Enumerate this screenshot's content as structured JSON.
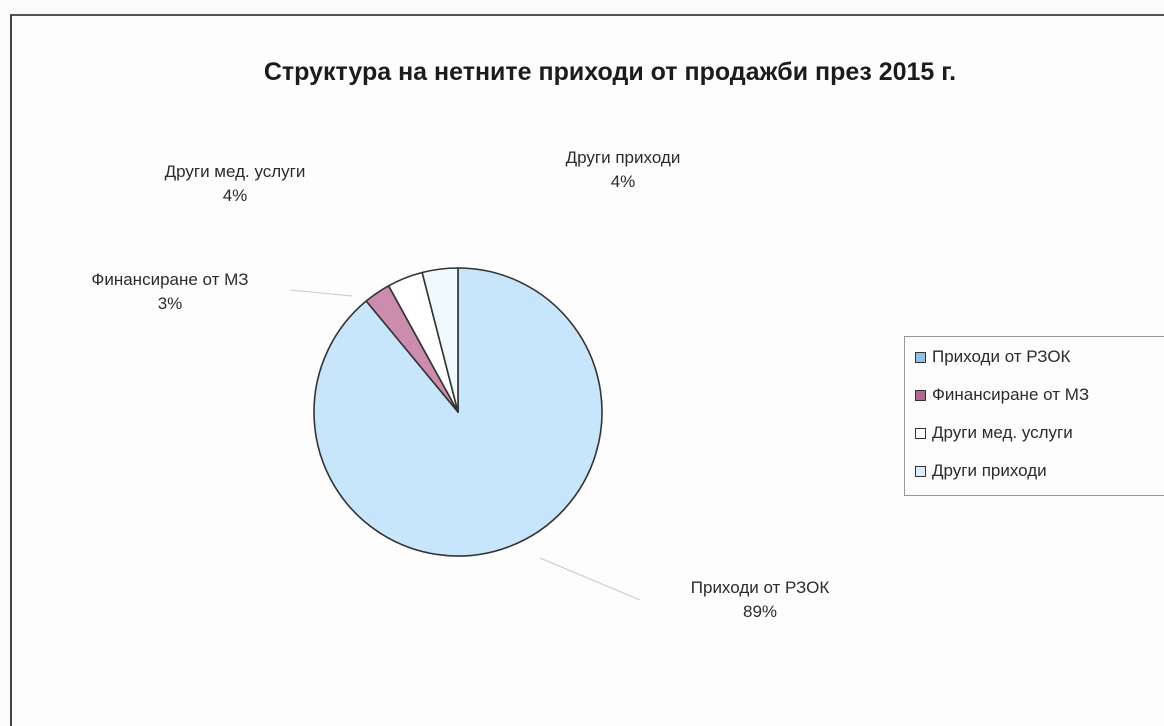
{
  "chart_data": {
    "type": "pie",
    "title": "Структура на нетните приходи от продажби през 2015 г.",
    "slices": [
      {
        "label": "Приходи от РЗОК",
        "value": 89,
        "display": "89%",
        "color": "#c8e6fb"
      },
      {
        "label": "Финансиране от МЗ",
        "value": 3,
        "display": "3%",
        "color": "#cc8cad"
      },
      {
        "label": "Други мед. услуги",
        "value": 4,
        "display": "4%",
        "color": "#ffffff"
      },
      {
        "label": "Други приходи",
        "value": 4,
        "display": "4%",
        "color": "#eef8fd"
      }
    ],
    "legend": {
      "position": "right",
      "entries": [
        {
          "label": "Приходи от РЗОК",
          "color": "#8fc0e8"
        },
        {
          "label": "Финансиране от МЗ",
          "color": "#b06a92"
        },
        {
          "label": "Други мед. услуги",
          "color": "#ffffff"
        },
        {
          "label": "Други приходи",
          "color": "#d9eefa"
        }
      ]
    }
  }
}
